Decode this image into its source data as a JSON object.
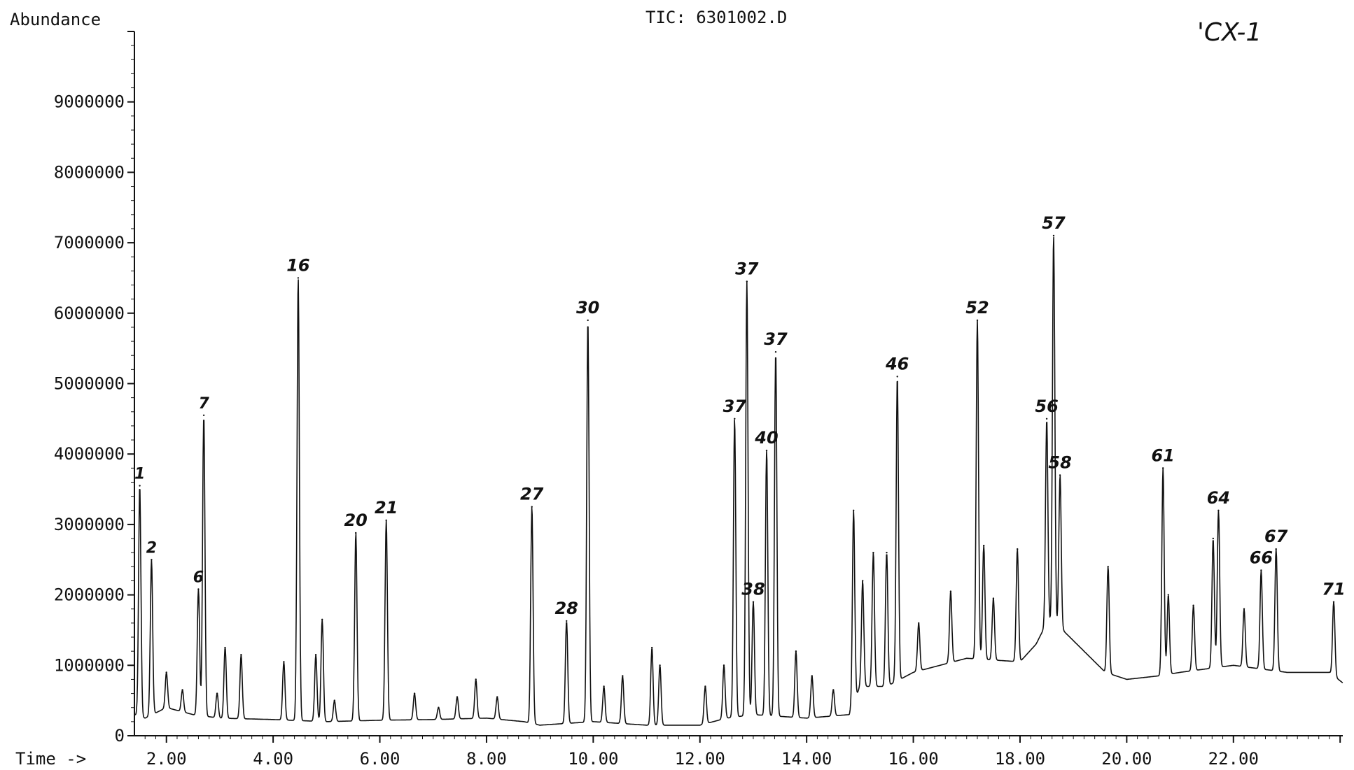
{
  "chart_data": {
    "type": "line",
    "title": "TIC: 6301002.D",
    "sample_label": "'CX-1",
    "ylabel": "Abundance",
    "xlabel": "Time ->",
    "xlim": [
      1.4,
      24.05
    ],
    "ylim": [
      0,
      10000000
    ],
    "grid": false,
    "legend": "none",
    "line_color": "#111111",
    "x_ticks": [
      2,
      4,
      6,
      8,
      10,
      12,
      14,
      16,
      18,
      20,
      22
    ],
    "x_tick_labels": [
      "2.00",
      "4.00",
      "6.00",
      "8.00",
      "10.00",
      "12.00",
      "14.00",
      "16.00",
      "18.00",
      "20.00",
      "22.00"
    ],
    "y_ticks": [
      0,
      1000000,
      2000000,
      3000000,
      4000000,
      5000000,
      6000000,
      7000000,
      8000000,
      9000000
    ],
    "y_tick_labels": [
      "0",
      "1000000",
      "2000000",
      "3000000",
      "4000000",
      "5000000",
      "6000000",
      "7000000",
      "8000000",
      "9000000"
    ],
    "baseline": [
      [
        1.4,
        300000
      ],
      [
        1.6,
        250000
      ],
      [
        2.0,
        400000
      ],
      [
        2.5,
        300000
      ],
      [
        3.0,
        250000
      ],
      [
        4.0,
        230000
      ],
      [
        5.0,
        200000
      ],
      [
        6.0,
        220000
      ],
      [
        7.0,
        230000
      ],
      [
        8.0,
        250000
      ],
      [
        8.7,
        200000
      ],
      [
        9.0,
        150000
      ],
      [
        10.0,
        200000
      ],
      [
        11.0,
        150000
      ],
      [
        12.0,
        150000
      ],
      [
        12.5,
        250000
      ],
      [
        13.0,
        300000
      ],
      [
        14.0,
        250000
      ],
      [
        14.8,
        300000
      ],
      [
        15.0,
        700000
      ],
      [
        15.5,
        700000
      ],
      [
        16.0,
        900000
      ],
      [
        17.0,
        1100000
      ],
      [
        18.0,
        1050000
      ],
      [
        18.3,
        1300000
      ],
      [
        18.5,
        1600000
      ],
      [
        18.8,
        1500000
      ],
      [
        19.2,
        1200000
      ],
      [
        19.6,
        900000
      ],
      [
        20.0,
        800000
      ],
      [
        20.6,
        850000
      ],
      [
        21.0,
        900000
      ],
      [
        22.0,
        1000000
      ],
      [
        22.5,
        950000
      ],
      [
        23.0,
        900000
      ],
      [
        23.8,
        900000
      ],
      [
        24.05,
        750000
      ]
    ],
    "peaks": [
      {
        "x": 1.5,
        "y": 3550000,
        "label": "1"
      },
      {
        "x": 1.72,
        "y": 2500000,
        "label": "2"
      },
      {
        "x": 2.0,
        "y": 900000,
        "label": ""
      },
      {
        "x": 2.3,
        "y": 650000,
        "label": ""
      },
      {
        "x": 2.6,
        "y": 2080000,
        "label": "6"
      },
      {
        "x": 2.7,
        "y": 4550000,
        "label": "7"
      },
      {
        "x": 2.95,
        "y": 600000,
        "label": ""
      },
      {
        "x": 3.1,
        "y": 1250000,
        "label": ""
      },
      {
        "x": 3.4,
        "y": 1150000,
        "label": ""
      },
      {
        "x": 4.2,
        "y": 1050000,
        "label": ""
      },
      {
        "x": 4.47,
        "y": 6500000,
        "label": "16"
      },
      {
        "x": 4.8,
        "y": 1150000,
        "label": ""
      },
      {
        "x": 4.92,
        "y": 1650000,
        "label": ""
      },
      {
        "x": 5.15,
        "y": 500000,
        "label": ""
      },
      {
        "x": 5.55,
        "y": 2880000,
        "label": "20"
      },
      {
        "x": 6.12,
        "y": 3060000,
        "label": "21"
      },
      {
        "x": 6.65,
        "y": 600000,
        "label": ""
      },
      {
        "x": 7.1,
        "y": 400000,
        "label": ""
      },
      {
        "x": 7.45,
        "y": 550000,
        "label": ""
      },
      {
        "x": 7.8,
        "y": 800000,
        "label": ""
      },
      {
        "x": 8.2,
        "y": 550000,
        "label": ""
      },
      {
        "x": 8.85,
        "y": 3250000,
        "label": "27"
      },
      {
        "x": 9.5,
        "y": 1630000,
        "label": "28"
      },
      {
        "x": 9.9,
        "y": 5900000,
        "label": "30"
      },
      {
        "x": 10.2,
        "y": 700000,
        "label": ""
      },
      {
        "x": 10.55,
        "y": 850000,
        "label": ""
      },
      {
        "x": 11.1,
        "y": 1250000,
        "label": ""
      },
      {
        "x": 11.25,
        "y": 1000000,
        "label": ""
      },
      {
        "x": 12.1,
        "y": 700000,
        "label": ""
      },
      {
        "x": 12.45,
        "y": 1000000,
        "label": ""
      },
      {
        "x": 12.65,
        "y": 4500000,
        "label": "37"
      },
      {
        "x": 12.88,
        "y": 6450000,
        "label": "37"
      },
      {
        "x": 13.0,
        "y": 1900000,
        "label": "38"
      },
      {
        "x": 13.25,
        "y": 4050000,
        "label": "40"
      },
      {
        "x": 13.42,
        "y": 5450000,
        "label": "37"
      },
      {
        "x": 13.8,
        "y": 1200000,
        "label": ""
      },
      {
        "x": 14.1,
        "y": 850000,
        "label": ""
      },
      {
        "x": 14.5,
        "y": 650000,
        "label": ""
      },
      {
        "x": 14.88,
        "y": 3200000,
        "label": ""
      },
      {
        "x": 15.05,
        "y": 2200000,
        "label": ""
      },
      {
        "x": 15.25,
        "y": 2600000,
        "label": ""
      },
      {
        "x": 15.5,
        "y": 2600000,
        "label": ""
      },
      {
        "x": 15.7,
        "y": 5100000,
        "label": "46"
      },
      {
        "x": 16.1,
        "y": 1600000,
        "label": ""
      },
      {
        "x": 16.7,
        "y": 2050000,
        "label": ""
      },
      {
        "x": 17.2,
        "y": 5900000,
        "label": "52"
      },
      {
        "x": 17.32,
        "y": 2700000,
        "label": ""
      },
      {
        "x": 17.5,
        "y": 1950000,
        "label": ""
      },
      {
        "x": 17.95,
        "y": 2650000,
        "label": ""
      },
      {
        "x": 18.5,
        "y": 4500000,
        "label": "56"
      },
      {
        "x": 18.63,
        "y": 7100000,
        "label": "57"
      },
      {
        "x": 18.75,
        "y": 3700000,
        "label": "58"
      },
      {
        "x": 19.65,
        "y": 2400000,
        "label": ""
      },
      {
        "x": 20.68,
        "y": 3800000,
        "label": "61"
      },
      {
        "x": 20.78,
        "y": 2000000,
        "label": ""
      },
      {
        "x": 21.25,
        "y": 1850000,
        "label": ""
      },
      {
        "x": 21.62,
        "y": 2800000,
        "label": ""
      },
      {
        "x": 21.72,
        "y": 3200000,
        "label": "64"
      },
      {
        "x": 22.2,
        "y": 1800000,
        "label": ""
      },
      {
        "x": 22.52,
        "y": 2350000,
        "label": "66"
      },
      {
        "x": 22.8,
        "y": 2650000,
        "label": "67"
      },
      {
        "x": 23.88,
        "y": 1900000,
        "label": "71"
      }
    ]
  }
}
